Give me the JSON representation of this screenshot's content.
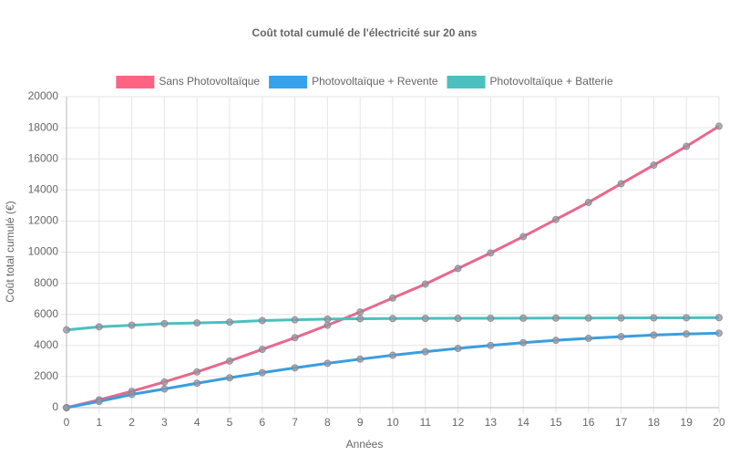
{
  "chart_data": {
    "type": "line",
    "title": "Coût total cumulé de l'électricité sur 20 ans",
    "x_label": "Années",
    "y_label": "Coût total cumulé (€)",
    "x": [
      0,
      1,
      2,
      3,
      4,
      5,
      6,
      7,
      8,
      9,
      10,
      11,
      12,
      13,
      14,
      15,
      16,
      17,
      18,
      19,
      20
    ],
    "xlim": [
      0,
      20
    ],
    "xticks": [
      0,
      1,
      2,
      3,
      4,
      5,
      6,
      7,
      8,
      9,
      10,
      11,
      12,
      13,
      14,
      15,
      16,
      17,
      18,
      19,
      20
    ],
    "ylim": [
      0,
      20000
    ],
    "yticks": [
      0,
      2000,
      4000,
      6000,
      8000,
      10000,
      12000,
      14000,
      16000,
      18000,
      20000
    ],
    "grid": true,
    "legend": "top",
    "series": [
      {
        "name": "Sans Photovoltaïque",
        "color": "#ff6384",
        "line_color": "#e8688c",
        "values": [
          0,
          500,
          1050,
          1650,
          2300,
          3000,
          3750,
          4500,
          5300,
          6150,
          7050,
          7950,
          8950,
          9950,
          11000,
          12100,
          13200,
          14400,
          15600,
          16800,
          18100
        ]
      },
      {
        "name": "Photovoltaïque + Revente",
        "color": "#36a2eb",
        "line_color": "#3a9ee0",
        "values": [
          0,
          400,
          850,
          1200,
          1570,
          1920,
          2250,
          2560,
          2850,
          3120,
          3370,
          3600,
          3810,
          4000,
          4180,
          4330,
          4460,
          4570,
          4670,
          4740,
          4790
        ]
      },
      {
        "name": "Photovoltaïque + Batterie",
        "color": "#4bc0c0",
        "line_color": "#4bc0c0",
        "values": [
          5000,
          5200,
          5300,
          5400,
          5450,
          5500,
          5600,
          5650,
          5700,
          5720,
          5730,
          5740,
          5745,
          5750,
          5755,
          5760,
          5765,
          5770,
          5775,
          5780,
          5790
        ]
      }
    ]
  }
}
